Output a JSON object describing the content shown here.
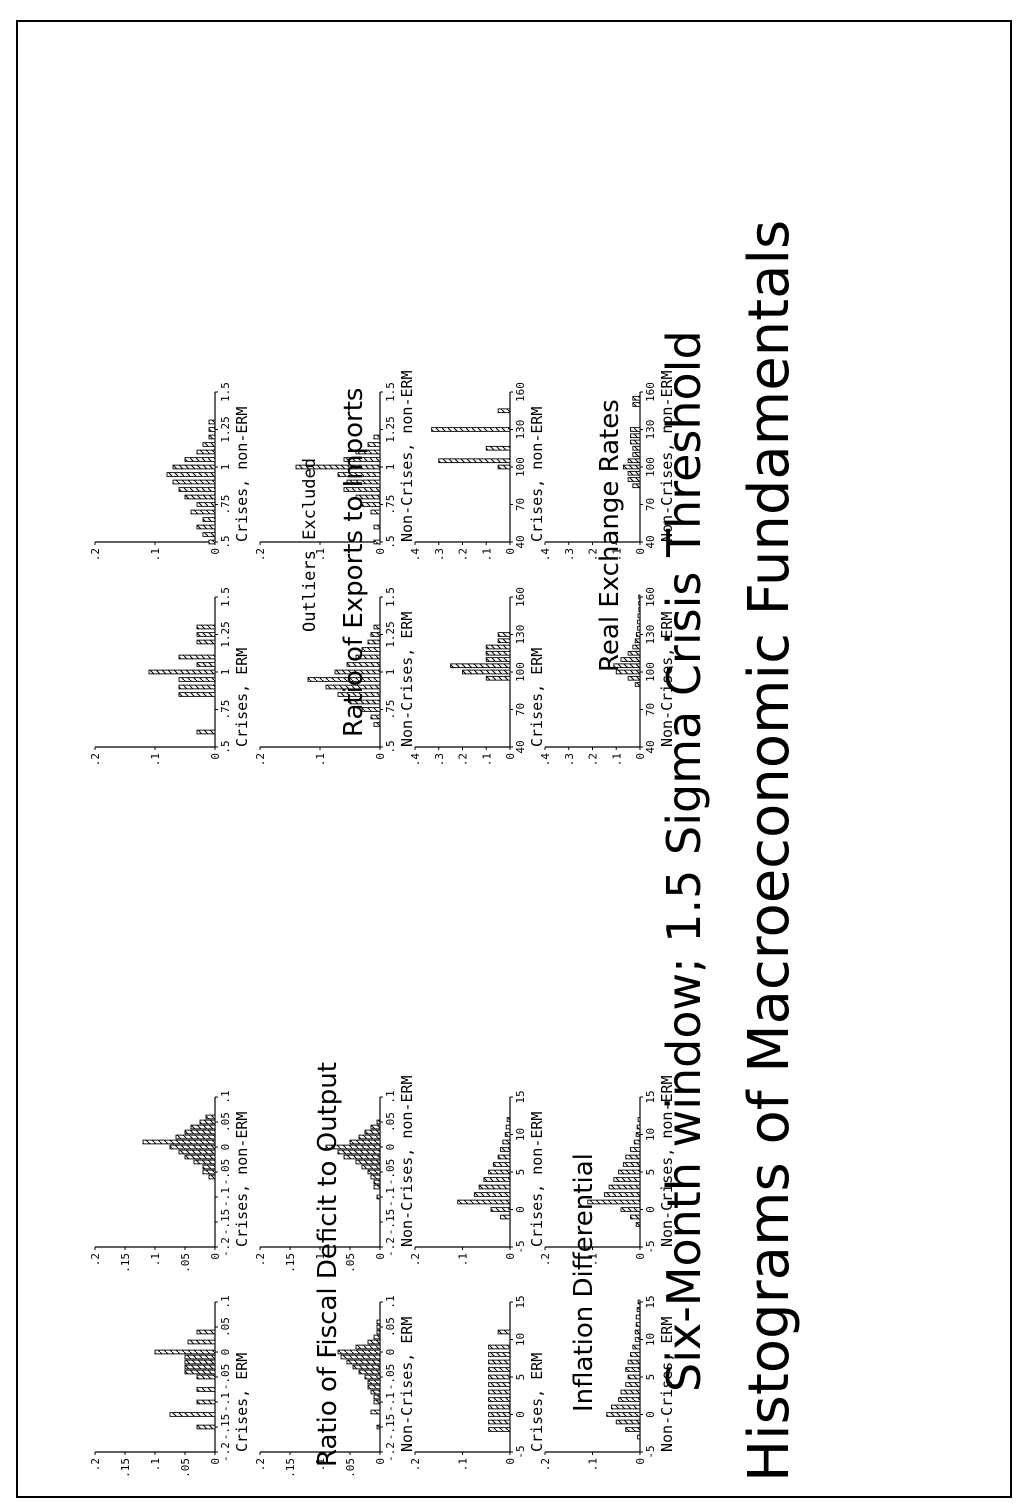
{
  "titles": {
    "main": "Histograms of Macroeconomic Fundamentals",
    "sub": "Six-Month window; 1.5 Sigma Crisis Threshold"
  },
  "groups": {
    "fiscal": "Ratio of Fiscal Deficit to Output",
    "inflation": "Inflation Differential",
    "exports": "Ratio of Exports to Imports",
    "exports_note": "Outliers Excluded",
    "rer": "Real Exchange Rates"
  },
  "chart_data": [
    {
      "id": "fiscal_crises_erm",
      "type": "bar",
      "title": "Crises, ERM",
      "x": [
        -0.15,
        -0.125,
        -0.1,
        -0.075,
        -0.05,
        -0.04,
        -0.03,
        -0.02,
        -0.01,
        0,
        0.02,
        0.04
      ],
      "values": [
        0.03,
        0.075,
        0.03,
        0.03,
        0.03,
        0.05,
        0.05,
        0.05,
        0.05,
        0.1,
        0.045,
        0.03
      ],
      "xlim": [
        -0.2,
        0.1
      ],
      "ylim": [
        0,
        0.2
      ],
      "xticks": [
        "-.2",
        "-.15",
        "-.1",
        "-.05",
        "0",
        ".05",
        ".1"
      ],
      "yticks": [
        ".2",
        ".15",
        ".1",
        ".05",
        "0"
      ]
    },
    {
      "id": "fiscal_noncrises_erm",
      "type": "bar",
      "title": "Non-Crises, ERM",
      "x": [
        -0.15,
        -0.12,
        -0.1,
        -0.09,
        -0.08,
        -0.07,
        -0.06,
        -0.05,
        -0.04,
        -0.03,
        -0.02,
        -0.01,
        0,
        0.01,
        0.02,
        0.03,
        0.04,
        0.05,
        0.06
      ],
      "values": [
        0.005,
        0.015,
        0.01,
        0.01,
        0.015,
        0.02,
        0.02,
        0.025,
        0.035,
        0.045,
        0.055,
        0.065,
        0.07,
        0.04,
        0.02,
        0.01,
        0.005,
        0.005,
        0.005
      ],
      "xlim": [
        -0.2,
        0.1
      ],
      "ylim": [
        0,
        0.2
      ],
      "xticks": [
        "-.2",
        "-.15",
        "-.1",
        "-.05",
        "0",
        ".05",
        ".1"
      ],
      "yticks": [
        ".2",
        ".15",
        ".1",
        ".05",
        "0"
      ]
    },
    {
      "id": "fiscal_crises_nonerm",
      "type": "bar",
      "title": "Crises, non-ERM",
      "x": [
        -0.06,
        -0.05,
        -0.04,
        -0.03,
        -0.02,
        -0.01,
        0,
        0.01,
        0.02,
        0.03,
        0.04,
        0.05,
        0.06
      ],
      "values": [
        0.01,
        0.02,
        0.02,
        0.035,
        0.05,
        0.06,
        0.075,
        0.12,
        0.065,
        0.05,
        0.04,
        0.025,
        0.015
      ],
      "xlim": [
        -0.2,
        0.1
      ],
      "ylim": [
        0,
        0.2
      ],
      "xticks": [
        "-.2",
        "-.15",
        "-.1",
        "-.05",
        "0",
        ".05",
        ".1"
      ],
      "yticks": [
        ".2",
        ".15",
        ".1",
        ".05",
        "0"
      ]
    },
    {
      "id": "fiscal_noncrises_nonerm",
      "type": "bar",
      "title": "Non-Crises, non-ERM",
      "x": [
        -0.1,
        -0.08,
        -0.07,
        -0.06,
        -0.05,
        -0.04,
        -0.03,
        -0.02,
        -0.01,
        0,
        0.01,
        0.02,
        0.03,
        0.04,
        0.05
      ],
      "values": [
        0.005,
        0.01,
        0.01,
        0.015,
        0.02,
        0.03,
        0.04,
        0.06,
        0.07,
        0.09,
        0.05,
        0.035,
        0.025,
        0.015,
        0.005
      ],
      "xlim": [
        -0.2,
        0.1
      ],
      "ylim": [
        0,
        0.2
      ],
      "xticks": [
        "-.2",
        "-.15",
        "-.1",
        "-.05",
        "0",
        ".05",
        ".1"
      ],
      "yticks": [
        ".2",
        ".15",
        ".1",
        ".05",
        "0"
      ]
    },
    {
      "id": "inflation_crises_erm",
      "type": "bar",
      "title": "Crises, ERM",
      "x": [
        -2,
        -1,
        0,
        1,
        2,
        3,
        4,
        5,
        6,
        7,
        8,
        9,
        11
      ],
      "values": [
        0.045,
        0.045,
        0.045,
        0.045,
        0.045,
        0.045,
        0.045,
        0.045,
        0.045,
        0.045,
        0.045,
        0.045,
        0.025
      ],
      "xlim": [
        -5,
        15
      ],
      "ylim": [
        0,
        0.2
      ],
      "xticks": [
        "-5",
        "0",
        "5",
        "10",
        "15"
      ],
      "yticks": [
        ".2",
        ".1",
        "0"
      ]
    },
    {
      "id": "inflation_noncrises_erm",
      "type": "bar",
      "title": "Non-Crises, ERM",
      "x": [
        -3,
        -2,
        -1,
        0,
        1,
        2,
        3,
        4,
        5,
        6,
        7,
        8,
        9,
        10,
        11,
        12,
        13,
        14,
        15
      ],
      "values": [
        0.005,
        0.03,
        0.05,
        0.07,
        0.06,
        0.045,
        0.04,
        0.03,
        0.025,
        0.03,
        0.025,
        0.02,
        0.015,
        0.01,
        0.01,
        0.008,
        0.008,
        0.006,
        0.004
      ],
      "xlim": [
        -5,
        15
      ],
      "ylim": [
        0,
        0.2
      ],
      "xticks": [
        "-5",
        "0",
        "5",
        "10",
        "15"
      ],
      "yticks": [
        ".2",
        ".1",
        "0"
      ]
    },
    {
      "id": "inflation_crises_nonerm",
      "type": "bar",
      "title": "Crises, non-ERM",
      "x": [
        -1,
        0,
        1,
        2,
        3,
        4,
        5,
        6,
        7,
        8,
        9,
        10,
        11,
        12
      ],
      "values": [
        0.02,
        0.04,
        0.11,
        0.075,
        0.065,
        0.055,
        0.045,
        0.035,
        0.025,
        0.02,
        0.015,
        0.01,
        0.008,
        0.006
      ],
      "xlim": [
        -5,
        15
      ],
      "ylim": [
        0,
        0.2
      ],
      "xticks": [
        "-5",
        "0",
        "5",
        "10",
        "15"
      ],
      "yticks": [
        ".2",
        ".1",
        "0"
      ]
    },
    {
      "id": "inflation_noncrises_nonerm",
      "type": "bar",
      "title": "Non-Crises, non-ERM",
      "x": [
        -2,
        -1,
        0,
        1,
        2,
        3,
        4,
        5,
        6,
        7,
        8,
        9,
        10,
        11,
        12
      ],
      "values": [
        0.008,
        0.02,
        0.04,
        0.11,
        0.075,
        0.065,
        0.055,
        0.045,
        0.035,
        0.03,
        0.02,
        0.012,
        0.008,
        0.006,
        0.004
      ],
      "xlim": [
        -5,
        15
      ],
      "ylim": [
        0,
        0.2
      ],
      "xticks": [
        "-5",
        "0",
        "5",
        "10",
        "15"
      ],
      "yticks": [
        ".2",
        ".1",
        "0"
      ]
    },
    {
      "id": "exports_crises_erm",
      "type": "bar",
      "title": "Crises, ERM",
      "x": [
        0.6,
        0.85,
        0.9,
        0.95,
        1.0,
        1.05,
        1.1,
        1.2,
        1.25,
        1.3
      ],
      "values": [
        0.03,
        0.06,
        0.06,
        0.06,
        0.11,
        0.03,
        0.06,
        0.03,
        0.03,
        0.03
      ],
      "xlim": [
        0.5,
        1.5
      ],
      "ylim": [
        0,
        0.2
      ],
      "xticks": [
        ".5",
        ".75",
        "1",
        "1.25",
        "1.5"
      ],
      "yticks": [
        ".2",
        ".1",
        "0"
      ]
    },
    {
      "id": "exports_noncrises_erm",
      "type": "bar",
      "title": "Non-Crises, ERM",
      "x": [
        0.65,
        0.7,
        0.75,
        0.8,
        0.85,
        0.9,
        0.95,
        1.0,
        1.05,
        1.1,
        1.15,
        1.2,
        1.25,
        1.3
      ],
      "values": [
        0.01,
        0.015,
        0.03,
        0.05,
        0.07,
        0.09,
        0.12,
        0.075,
        0.055,
        0.04,
        0.03,
        0.02,
        0.015,
        0.01
      ],
      "xlim": [
        0.5,
        1.5
      ],
      "ylim": [
        0,
        0.2
      ],
      "xticks": [
        ".5",
        ".75",
        "1",
        "1.25",
        "1.5"
      ],
      "yticks": [
        ".2",
        ".1",
        "0"
      ]
    },
    {
      "id": "exports_crises_nonerm",
      "type": "bar",
      "title": "Crises, non-ERM",
      "x": [
        0.5,
        0.55,
        0.6,
        0.65,
        0.7,
        0.75,
        0.8,
        0.85,
        0.9,
        0.95,
        1.0,
        1.05,
        1.1,
        1.15,
        1.2,
        1.25,
        1.3
      ],
      "values": [
        0.01,
        0.02,
        0.03,
        0.02,
        0.04,
        0.03,
        0.05,
        0.06,
        0.07,
        0.08,
        0.07,
        0.05,
        0.03,
        0.02,
        0.01,
        0.01,
        0.01
      ],
      "xlim": [
        0.5,
        1.5
      ],
      "ylim": [
        0,
        0.2
      ],
      "xticks": [
        ".5",
        ".75",
        "1",
        "1.25",
        "1.5"
      ],
      "yticks": [
        ".2",
        ".1",
        "0"
      ]
    },
    {
      "id": "exports_noncrises_nonerm",
      "type": "bar",
      "title": "Non-Crises, non-ERM",
      "x": [
        0.5,
        0.6,
        0.7,
        0.75,
        0.8,
        0.85,
        0.9,
        0.95,
        1.0,
        1.05,
        1.1,
        1.15,
        1.2
      ],
      "values": [
        0.01,
        0.01,
        0.015,
        0.03,
        0.04,
        0.06,
        0.055,
        0.07,
        0.14,
        0.06,
        0.04,
        0.02,
        0.01
      ],
      "xlim": [
        0.5,
        1.5
      ],
      "ylim": [
        0,
        0.2
      ],
      "xticks": [
        ".5",
        ".75",
        "1",
        "1.25",
        "1.5"
      ],
      "yticks": [
        ".2",
        ".1",
        "0"
      ]
    },
    {
      "id": "rer_crises_erm",
      "type": "bar",
      "title": "Crises, ERM",
      "x": [
        95,
        100,
        105,
        110,
        115,
        120,
        125,
        130
      ],
      "values": [
        0.1,
        0.2,
        0.25,
        0.1,
        0.1,
        0.1,
        0.05,
        0.05
      ],
      "xlim": [
        40,
        160
      ],
      "ylim": [
        0,
        0.4
      ],
      "xticks": [
        "40",
        "70",
        "100",
        "130",
        "160"
      ],
      "yticks": [
        ".4",
        ".3",
        ".2",
        ".1",
        "0"
      ]
    },
    {
      "id": "rer_noncrises_erm",
      "type": "bar",
      "title": "Non-Crises, ERM",
      "x": [
        90,
        95,
        100,
        105,
        110,
        115,
        120,
        125,
        130,
        135,
        140,
        145,
        150,
        155,
        160
      ],
      "values": [
        0.02,
        0.05,
        0.1,
        0.11,
        0.08,
        0.05,
        0.03,
        0.02,
        0.015,
        0.01,
        0.01,
        0.008,
        0.005,
        0.005,
        0.005
      ],
      "xlim": [
        40,
        160
      ],
      "ylim": [
        0,
        0.4
      ],
      "xticks": [
        "40",
        "70",
        "100",
        "130",
        "160"
      ],
      "yticks": [
        ".4",
        ".3",
        ".2",
        ".1",
        "0"
      ]
    },
    {
      "id": "rer_crises_nonerm",
      "type": "bar",
      "title": "Crises, non-ERM",
      "x": [
        100,
        105,
        115,
        130,
        145
      ],
      "values": [
        0.05,
        0.3,
        0.1,
        0.33,
        0.05
      ],
      "xlim": [
        40,
        160
      ],
      "ylim": [
        0,
        0.4
      ],
      "xticks": [
        "40",
        "70",
        "100",
        "130",
        "160"
      ],
      "yticks": [
        ".4",
        ".3",
        ".2",
        ".1",
        "0"
      ]
    },
    {
      "id": "rer_noncrises_nonerm",
      "type": "bar",
      "title": "Non-Crises, non-ERM",
      "x": [
        85,
        90,
        95,
        100,
        105,
        110,
        115,
        120,
        125,
        130,
        150,
        155
      ],
      "values": [
        0.03,
        0.05,
        0.05,
        0.07,
        0.05,
        0.03,
        0.03,
        0.04,
        0.04,
        0.04,
        0.03,
        0.03
      ],
      "xlim": [
        40,
        160
      ],
      "ylim": [
        0,
        0.4
      ],
      "xticks": [
        "40",
        "70",
        "100",
        "130",
        "160"
      ],
      "yticks": [
        ".4",
        ".3",
        ".2",
        ".1",
        "0"
      ]
    }
  ]
}
